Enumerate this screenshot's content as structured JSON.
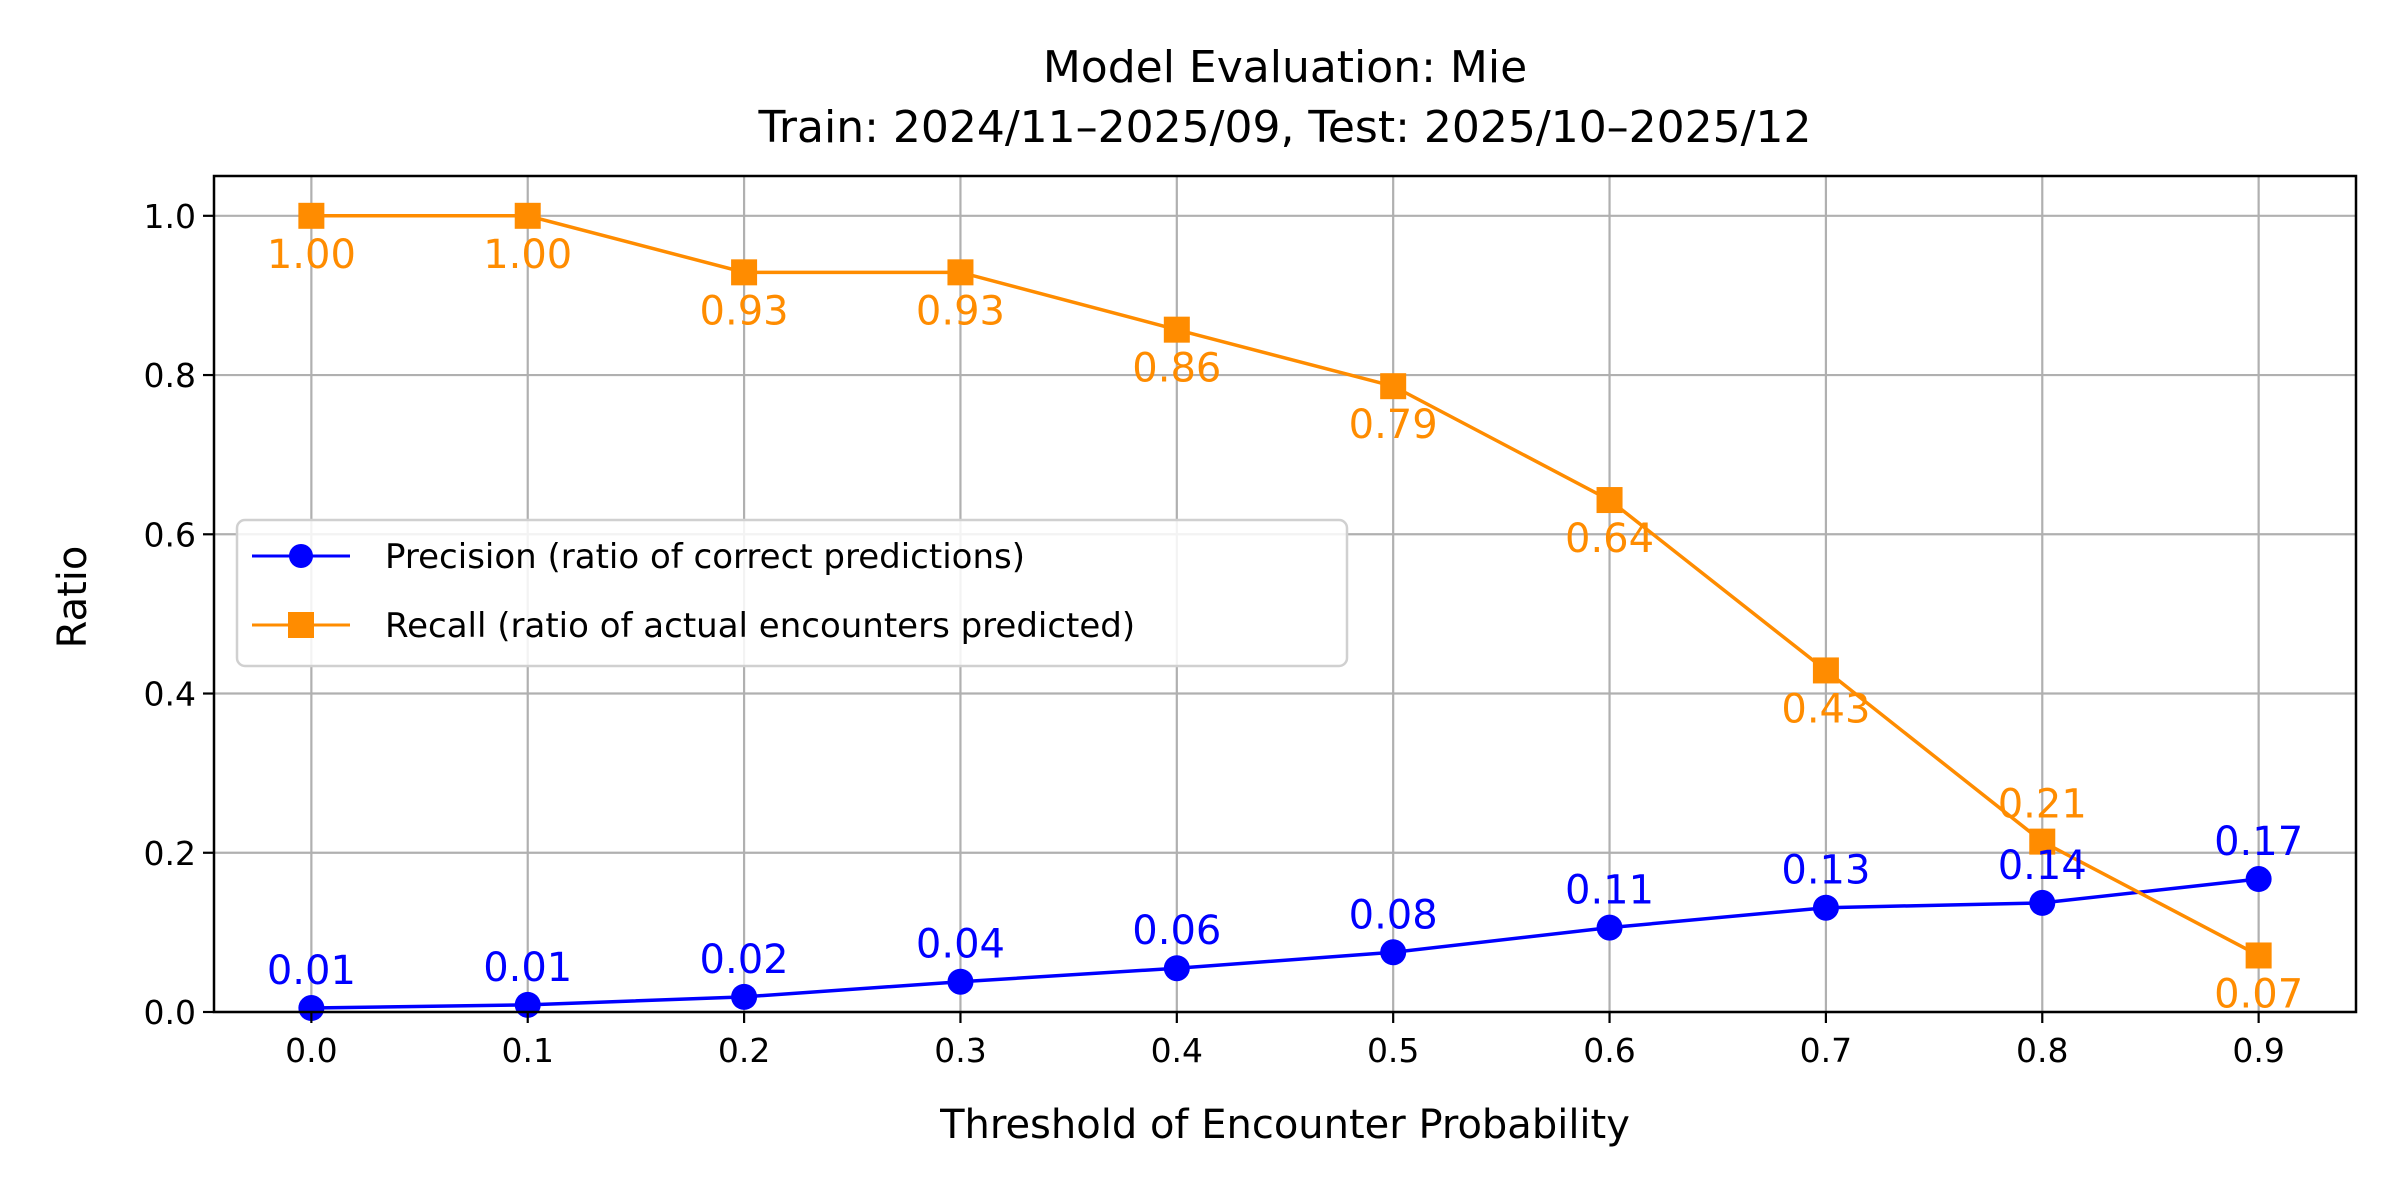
{
  "chart_data": {
    "type": "line",
    "title": "Model Evaluation: Mie",
    "subtitle": "Train: 2024/11–2025/09, Test: 2025/10–2025/12",
    "xlabel": "Threshold of Encounter Probability",
    "ylabel": "Ratio",
    "xlim": [
      -0.045,
      0.945
    ],
    "ylim": [
      0,
      1.05
    ],
    "grid": true,
    "legend_position": "center-left",
    "x": [
      0.0,
      0.1,
      0.2,
      0.3,
      0.4,
      0.5,
      0.6,
      0.7,
      0.8,
      0.9
    ],
    "x_tick_labels": [
      "0.0",
      "0.1",
      "0.2",
      "0.3",
      "0.4",
      "0.5",
      "0.6",
      "0.7",
      "0.8",
      "0.9"
    ],
    "y_ticks": [
      0.0,
      0.2,
      0.4,
      0.6,
      0.8,
      1.0
    ],
    "y_tick_labels": [
      "0.0",
      "0.2",
      "0.4",
      "0.6",
      "0.8",
      "1.0"
    ],
    "series": [
      {
        "name": "Precision (ratio of correct predictions)",
        "color": "#0000ff",
        "marker": "circle",
        "values": [
          0.005,
          0.009,
          0.019,
          0.038,
          0.055,
          0.075,
          0.106,
          0.131,
          0.137,
          0.167
        ],
        "labels": [
          "0.01",
          "0.01",
          "0.02",
          "0.04",
          "0.06",
          "0.08",
          "0.11",
          "0.13",
          "0.14",
          "0.17"
        ],
        "label_position": "above"
      },
      {
        "name": "Recall (ratio of actual encounters predicted)",
        "color": "#ff8c00",
        "marker": "square",
        "values": [
          1.0,
          1.0,
          0.929,
          0.929,
          0.857,
          0.786,
          0.643,
          0.429,
          0.214,
          0.071
        ],
        "labels": [
          "1.00",
          "1.00",
          "0.93",
          "0.93",
          "0.86",
          "0.79",
          "0.64",
          "0.43",
          "0.21",
          "0.07"
        ],
        "label_position": "below"
      }
    ]
  }
}
